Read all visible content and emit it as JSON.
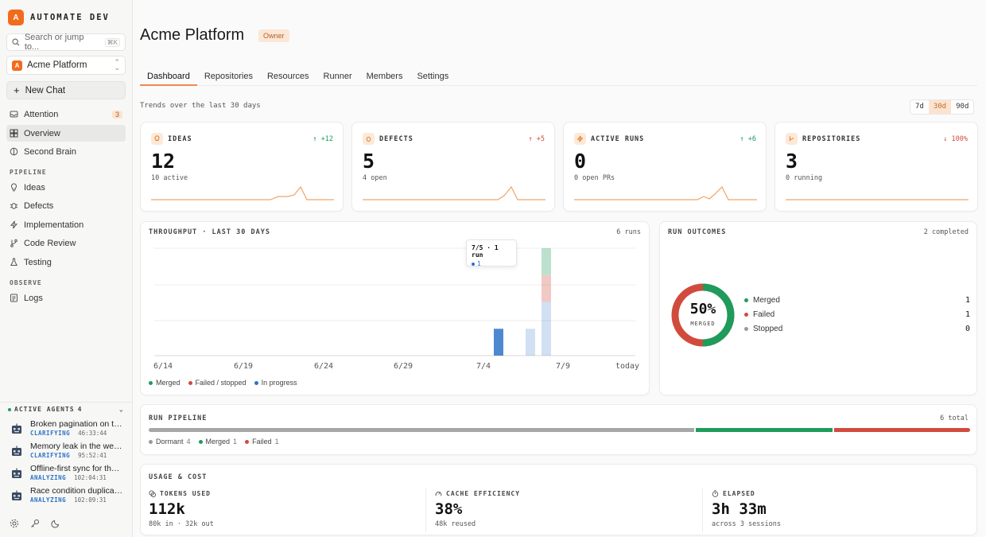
{
  "brand": {
    "logo_letter": "A",
    "name": "AUTOMATE DEV"
  },
  "search": {
    "placeholder": "Search or jump to...",
    "shortcut": "⌘K"
  },
  "project_selector": {
    "logo_letter": "A",
    "name": "Acme Platform"
  },
  "new_chat_label": "New Chat",
  "nav": {
    "attention": {
      "label": "Attention",
      "badge": "3"
    },
    "overview": {
      "label": "Overview"
    },
    "second_brain": {
      "label": "Second Brain"
    },
    "pipeline_label": "PIPELINE",
    "pipeline": [
      {
        "label": "Ideas",
        "icon": "lightbulb-icon"
      },
      {
        "label": "Defects",
        "icon": "bug-icon"
      },
      {
        "label": "Implementation",
        "icon": "zap-icon"
      },
      {
        "label": "Code Review",
        "icon": "git-branch-icon"
      },
      {
        "label": "Testing",
        "icon": "flask-icon"
      }
    ],
    "observe_label": "OBSERVE",
    "logs": {
      "label": "Logs"
    }
  },
  "active_agents": {
    "label": "ACTIVE AGENTS",
    "count": "4",
    "items": [
      {
        "title": "Broken pagination on the...",
        "status": "CLARIFYING",
        "time": "46:33:44"
      },
      {
        "title": "Memory leak in the webs...",
        "status": "CLARIFYING",
        "time": "95:52:41"
      },
      {
        "title": "Offline-first sync for the ...",
        "status": "ANALYZING",
        "time": "102:04:31"
      },
      {
        "title": "Race condition duplicate...",
        "status": "ANALYZING",
        "time": "102:09:31"
      }
    ]
  },
  "page": {
    "title": "Acme Platform",
    "role_badge": "Owner"
  },
  "tabs": [
    "Dashboard",
    "Repositories",
    "Resources",
    "Runner",
    "Members",
    "Settings"
  ],
  "trend_label": "Trends over the last 30 days",
  "range_options": [
    "7d",
    "30d",
    "90d"
  ],
  "stats": [
    {
      "label": "IDEAS",
      "icon": "lightbulb-icon",
      "delta": "+12",
      "value": "12",
      "sub": "10 active"
    },
    {
      "label": "DEFECTS",
      "icon": "bug-icon",
      "delta": "+5",
      "value": "5",
      "sub": "4 open"
    },
    {
      "label": "ACTIVE RUNS",
      "icon": "zap-icon",
      "delta": "+6",
      "value": "0",
      "sub": "0 open PRs"
    },
    {
      "label": "REPOSITORIES",
      "icon": "git-branch-icon",
      "delta": "100%",
      "value": "3",
      "sub": "0 running"
    }
  ],
  "throughput": {
    "title": "THROUGHPUT · LAST 30 DAYS",
    "right": "6 runs"
  },
  "tooltip": {
    "title": "7/5 · 1 run",
    "value": "1"
  },
  "run_outcomes": {
    "title": "RUN OUTCOMES",
    "right": "2 completed",
    "center_value": "50%",
    "center_label": "MERGED",
    "rows": [
      {
        "label": "Merged",
        "count": "1",
        "color": "#1f9b5c"
      },
      {
        "label": "Failed",
        "count": "1",
        "color": "#d14b3d"
      },
      {
        "label": "Stopped",
        "count": "0",
        "color": "#999999"
      }
    ]
  },
  "run_pipeline": {
    "title": "RUN PIPELINE",
    "right": "6 total",
    "legend": [
      {
        "label": "Dormant",
        "count": "4",
        "color": "#999999"
      },
      {
        "label": "Merged",
        "count": "1",
        "color": "#1f9b5c"
      },
      {
        "label": "Failed",
        "count": "1",
        "color": "#d14b3d"
      }
    ]
  },
  "usage": {
    "title": "USAGE & COST",
    "tokens": {
      "label": "TOKENS USED",
      "value": "112k",
      "sub": "80k in · 32k out"
    },
    "cache": {
      "label": "CACHE EFFICIENCY",
      "value": "38%",
      "sub": "48k reused"
    },
    "elapsed": {
      "label": "ELAPSED",
      "value": "3h 33m",
      "sub": "across 3 sessions"
    }
  },
  "chart_data": {
    "type": "bar",
    "x_tick_labels": [
      "6/14",
      "6/19",
      "6/24",
      "6/29",
      "7/4",
      "7/9",
      "today"
    ],
    "legend": [
      "Merged",
      "Failed / stopped",
      "In progress"
    ],
    "colors": {
      "merged": "#1f9b5c",
      "failed": "#d14b3d",
      "in_progress": "#2f73c8"
    },
    "series": [
      {
        "name": "Merged",
        "values": [
          {
            "day": "7/8",
            "value": 1
          }
        ]
      },
      {
        "name": "Failed / stopped",
        "values": [
          {
            "day": "7/8",
            "value": 1
          }
        ]
      },
      {
        "name": "In progress",
        "values": [
          {
            "day": "7/5",
            "value": 1
          },
          {
            "day": "7/7",
            "value": 1
          },
          {
            "day": "7/8",
            "value": 2
          }
        ]
      }
    ],
    "ylim": [
      0,
      4
    ]
  }
}
